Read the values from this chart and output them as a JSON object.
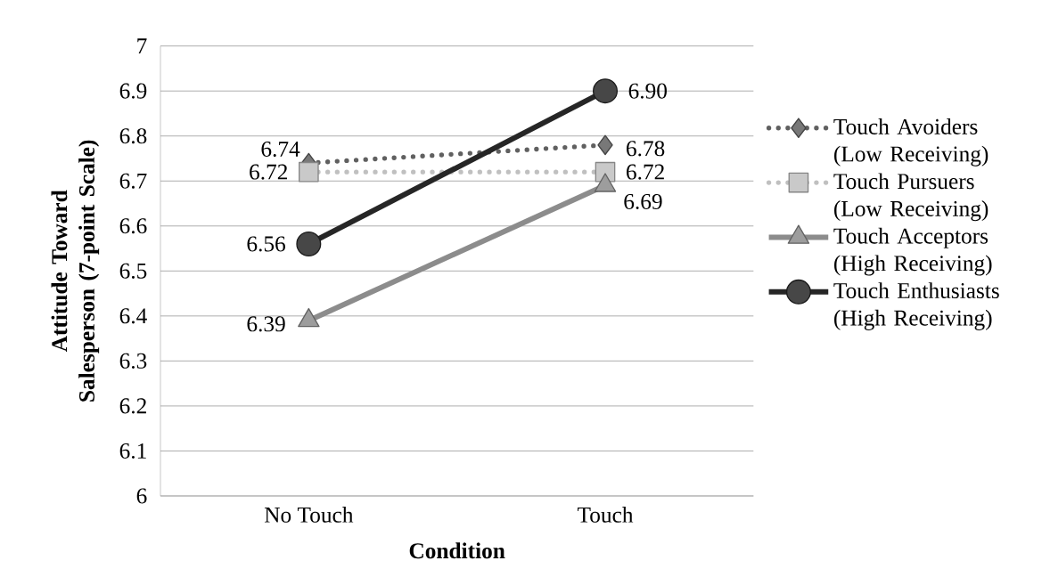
{
  "chart_data": {
    "type": "line",
    "categories": [
      "No Touch",
      "Touch"
    ],
    "xlabel": "Condition",
    "ylabel": "Attitude Toward Salesperson (7-point Scale)",
    "ylim": [
      6,
      7
    ],
    "yticks": [
      6,
      6.1,
      6.2,
      6.3,
      6.4,
      6.5,
      6.6,
      6.7,
      6.8,
      6.9,
      7
    ],
    "grid": "y",
    "legend": "right",
    "series": [
      {
        "name": "Touch Avoiders (Low Receiving)",
        "color": "#606060",
        "values": [
          6.74,
          6.78
        ],
        "value_labels": [
          "6.74",
          "6.78"
        ],
        "marker": "diamond",
        "line_style": "dotted"
      },
      {
        "name": "Touch Pursuers (Low Receiving)",
        "color": "#c0c0c0",
        "values": [
          6.72,
          6.72
        ],
        "value_labels": [
          "6.72",
          "6.72"
        ],
        "marker": "square",
        "line_style": "dotted"
      },
      {
        "name": "Touch Acceptors (High Receiving)",
        "color": "#8c8c8c",
        "values": [
          6.39,
          6.69
        ],
        "value_labels": [
          "6.39",
          "6.69"
        ],
        "marker": "triangle",
        "line_style": "solid"
      },
      {
        "name": "Touch Enthusiasts (High Receiving)",
        "color": "#262626",
        "values": [
          6.56,
          6.9
        ],
        "value_labels": [
          "6.56",
          "6.90"
        ],
        "marker": "circle",
        "line_style": "solid"
      }
    ]
  }
}
